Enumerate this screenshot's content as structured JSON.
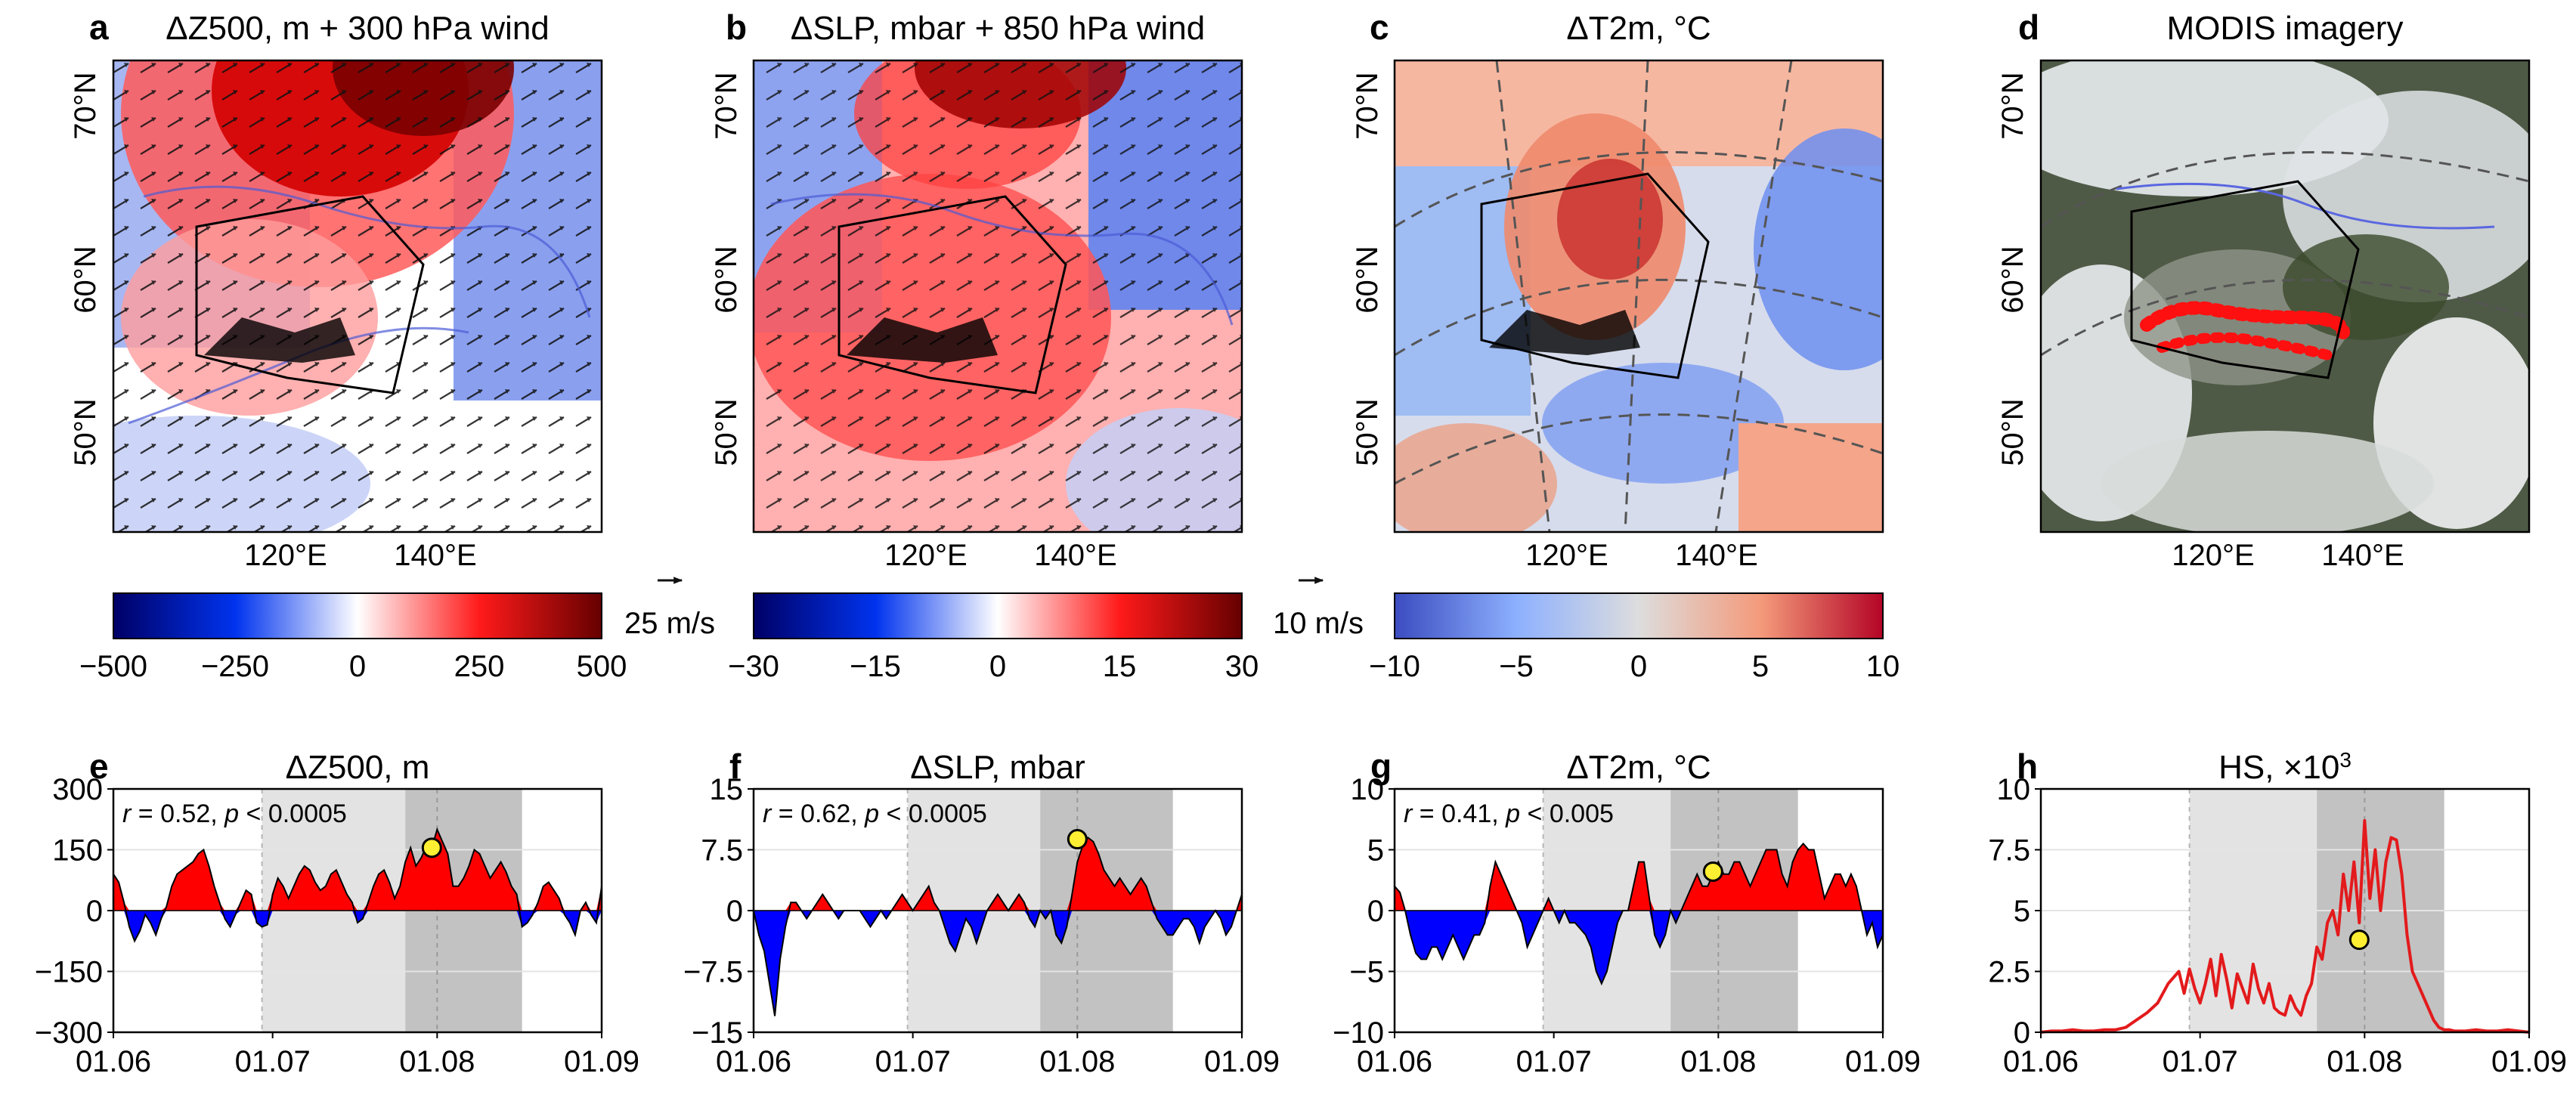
{
  "figure": {
    "map_panels": [
      {
        "letter": "a",
        "title": "ΔZ500, m + 300 hPa wind",
        "colorbar_type": "sym_dark",
        "cb_ticks": [
          "−500",
          "−250",
          "0",
          "250",
          "500"
        ],
        "wind_ref": "25 m/s"
      },
      {
        "letter": "b",
        "title": "ΔSLP, mbar + 850 hPa wind",
        "colorbar_type": "sym_dark",
        "cb_ticks": [
          "−30",
          "−15",
          "0",
          "15",
          "30"
        ],
        "wind_ref": "10 m/s"
      },
      {
        "letter": "c",
        "title": "ΔT2m, °C",
        "colorbar_type": "coolwarm",
        "cb_ticks": [
          "−10",
          "−5",
          "0",
          "5",
          "10"
        ],
        "wind_ref": ""
      },
      {
        "letter": "d",
        "title": "MODIS imagery",
        "colorbar_type": "none",
        "cb_ticks": [],
        "wind_ref": ""
      }
    ],
    "map_lat_labels": [
      "70°N",
      "60°N",
      "50°N"
    ],
    "map_lon_labels": [
      "120°E",
      "140°E"
    ],
    "colors": {
      "positive": "#ff0000",
      "negative": "#0000ff",
      "hs_line": "#e31a1c",
      "marker": "#ffef33",
      "shade_light": "#e3e3e3",
      "shade_dark": "#c2c2c2"
    }
  },
  "chart_data": [
    {
      "panel": "e",
      "title": "ΔZ500, m",
      "type": "area",
      "stat": {
        "r": "0.52",
        "p": "0.0005",
        "comp": "<"
      },
      "ylim": [
        -300,
        300
      ],
      "yticks": [
        -300,
        -150,
        0,
        150,
        300
      ],
      "ytick_labels": [
        "−300",
        "−150",
        "0",
        "150",
        "300"
      ],
      "xlim": [
        0,
        92
      ],
      "xticks": [
        0,
        30,
        61,
        92
      ],
      "xtick_labels": [
        "01.06",
        "01.07",
        "01.08",
        "01.09"
      ],
      "shade_light": [
        28,
        55
      ],
      "shade_dark": [
        55,
        77
      ],
      "vline": 61,
      "marker": {
        "x": 60,
        "y": 155
      },
      "x": [
        0,
        1,
        2,
        3,
        4,
        5,
        6,
        7,
        8,
        9,
        10,
        11,
        12,
        13,
        14,
        15,
        16,
        17,
        18,
        19,
        20,
        21,
        22,
        23,
        24,
        25,
        26,
        27,
        28,
        29,
        30,
        31,
        32,
        33,
        34,
        35,
        36,
        37,
        38,
        39,
        40,
        41,
        42,
        43,
        44,
        45,
        46,
        47,
        48,
        49,
        50,
        51,
        52,
        53,
        54,
        55,
        56,
        57,
        58,
        59,
        60,
        61,
        62,
        63,
        64,
        65,
        66,
        67,
        68,
        69,
        70,
        71,
        72,
        73,
        74,
        75,
        76,
        77,
        78,
        79,
        80,
        81,
        82,
        83,
        84,
        85,
        86,
        87,
        88,
        89,
        90,
        91,
        92
      ],
      "values": [
        90,
        70,
        20,
        -40,
        -75,
        -50,
        -10,
        -30,
        -60,
        -20,
        10,
        60,
        90,
        100,
        110,
        120,
        140,
        150,
        110,
        60,
        20,
        -20,
        -40,
        -10,
        20,
        50,
        40,
        -30,
        -40,
        -35,
        40,
        80,
        60,
        30,
        60,
        90,
        110,
        100,
        70,
        50,
        60,
        90,
        100,
        70,
        40,
        20,
        -30,
        -20,
        20,
        60,
        90,
        100,
        70,
        30,
        60,
        120,
        155,
        110,
        130,
        160,
        155,
        200,
        170,
        140,
        60,
        60,
        80,
        110,
        150,
        140,
        110,
        80,
        100,
        120,
        95,
        60,
        40,
        -40,
        -30,
        -10,
        20,
        60,
        70,
        50,
        30,
        -10,
        -30,
        -60,
        0,
        20,
        -10,
        -30,
        60
      ]
    },
    {
      "panel": "f",
      "title": "ΔSLP, mbar",
      "type": "area",
      "stat": {
        "r": "0.62",
        "p": "0.0005",
        "comp": "<"
      },
      "ylim": [
        -15,
        15
      ],
      "yticks": [
        -15,
        -7.5,
        0,
        7.5,
        15
      ],
      "ytick_labels": [
        "−15",
        "−7.5",
        "0",
        "7.5",
        "15"
      ],
      "xlim": [
        0,
        92
      ],
      "xticks": [
        0,
        30,
        61,
        92
      ],
      "xtick_labels": [
        "01.06",
        "01.07",
        "01.08",
        "01.09"
      ],
      "shade_light": [
        29,
        54
      ],
      "shade_dark": [
        54,
        79
      ],
      "vline": 61,
      "marker": {
        "x": 61,
        "y": 8.8
      },
      "x": [
        0,
        1,
        2,
        3,
        4,
        5,
        6,
        7,
        8,
        9,
        10,
        11,
        12,
        13,
        14,
        15,
        16,
        17,
        18,
        19,
        20,
        21,
        22,
        23,
        24,
        25,
        26,
        27,
        28,
        29,
        30,
        31,
        32,
        33,
        34,
        35,
        36,
        37,
        38,
        39,
        40,
        41,
        42,
        43,
        44,
        45,
        46,
        47,
        48,
        49,
        50,
        51,
        52,
        53,
        54,
        55,
        56,
        57,
        58,
        59,
        60,
        61,
        62,
        63,
        64,
        65,
        66,
        67,
        68,
        69,
        70,
        71,
        72,
        73,
        74,
        75,
        76,
        77,
        78,
        79,
        80,
        81,
        82,
        83,
        84,
        85,
        86,
        87,
        88,
        89,
        90,
        91,
        92
      ],
      "values": [
        0,
        -3,
        -5,
        -9,
        -13,
        -6,
        -2,
        1,
        1,
        0,
        -1,
        0,
        1,
        2,
        1,
        0,
        -1,
        0,
        0,
        0,
        0,
        -1,
        -2,
        -1,
        0,
        -1,
        0,
        1,
        2,
        1,
        0,
        1,
        2,
        3,
        1,
        0,
        -2,
        -4,
        -5,
        -3,
        -1,
        -2,
        -4,
        -2,
        0,
        1,
        2,
        1,
        0,
        1,
        2,
        1,
        -1,
        -2,
        0,
        -1,
        0,
        -3,
        -4,
        -2,
        2,
        6,
        8,
        9,
        8.5,
        7,
        5,
        4,
        3,
        4,
        3,
        2,
        3,
        4,
        3,
        1,
        -1,
        -2,
        -3,
        -3,
        -2,
        -1,
        -1,
        -2,
        -4,
        -2,
        -1,
        0,
        -1,
        -3,
        -2,
        0,
        2
      ]
    },
    {
      "panel": "g",
      "title": "ΔT2m, °C",
      "type": "area",
      "stat": {
        "r": "0.41",
        "p": "0.005",
        "comp": "<"
      },
      "ylim": [
        -10,
        10
      ],
      "yticks": [
        -10,
        -5,
        0,
        5,
        10
      ],
      "ytick_labels": [
        "−10",
        "−5",
        "0",
        "5",
        "10"
      ],
      "xlim": [
        0,
        92
      ],
      "xticks": [
        0,
        30,
        61,
        92
      ],
      "xtick_labels": [
        "01.06",
        "01.07",
        "01.08",
        "01.09"
      ],
      "shade_light": [
        28,
        52
      ],
      "shade_dark": [
        52,
        76
      ],
      "vline": 61,
      "marker": {
        "x": 60,
        "y": 3.2
      },
      "x": [
        0,
        1,
        2,
        3,
        4,
        5,
        6,
        7,
        8,
        9,
        10,
        11,
        12,
        13,
        14,
        15,
        16,
        17,
        18,
        19,
        20,
        21,
        22,
        23,
        24,
        25,
        26,
        27,
        28,
        29,
        30,
        31,
        32,
        33,
        34,
        35,
        36,
        37,
        38,
        39,
        40,
        41,
        42,
        43,
        44,
        45,
        46,
        47,
        48,
        49,
        50,
        51,
        52,
        53,
        54,
        55,
        56,
        57,
        58,
        59,
        60,
        61,
        62,
        63,
        64,
        65,
        66,
        67,
        68,
        69,
        70,
        71,
        72,
        73,
        74,
        75,
        76,
        77,
        78,
        79,
        80,
        81,
        82,
        83,
        84,
        85,
        86,
        87,
        88,
        89,
        90,
        91,
        92
      ],
      "values": [
        2,
        1.5,
        0,
        -2,
        -3.5,
        -4,
        -4,
        -3,
        -3,
        -4,
        -3,
        -2,
        -3,
        -4,
        -3,
        -2,
        -2,
        -1,
        2,
        4,
        3,
        2,
        1,
        0,
        -1,
        -3,
        -2,
        -1,
        0,
        1,
        0,
        -1,
        0,
        -1,
        -1,
        -1.5,
        -2,
        -3,
        -5,
        -6,
        -5,
        -3,
        -1,
        0,
        0,
        2,
        4,
        4,
        1,
        -2,
        -3,
        -2,
        0,
        -1,
        0,
        1,
        2,
        3,
        2,
        2,
        3,
        4,
        3,
        3,
        4,
        4,
        3,
        2,
        3,
        4,
        5,
        5,
        5,
        3,
        2,
        4,
        5,
        5.5,
        5,
        5,
        3,
        1,
        2,
        3,
        3,
        2,
        3,
        2,
        0,
        -2,
        -1,
        -3,
        -2
      ]
    },
    {
      "panel": "h",
      "title": "HS, ×10",
      "title_sup": "3",
      "type": "line",
      "stat": null,
      "ylim": [
        0,
        10
      ],
      "yticks": [
        0,
        2.5,
        5,
        7.5,
        10
      ],
      "ytick_labels": [
        "0",
        "2.5",
        "5",
        "7.5",
        "10"
      ],
      "xlim": [
        0,
        92
      ],
      "xticks": [
        0,
        30,
        61,
        92
      ],
      "xtick_labels": [
        "01.06",
        "01.07",
        "01.08",
        "01.09"
      ],
      "shade_light": [
        28,
        52
      ],
      "shade_dark": [
        52,
        76
      ],
      "vline": 61,
      "marker": {
        "x": 60,
        "y": 3.8
      },
      "x": [
        0,
        2,
        4,
        6,
        8,
        10,
        12,
        14,
        16,
        18,
        20,
        22,
        24,
        26,
        27,
        28,
        29,
        30,
        31,
        32,
        33,
        34,
        35,
        36,
        37,
        38,
        39,
        40,
        41,
        42,
        43,
        44,
        45,
        46,
        47,
        48,
        49,
        50,
        51,
        52,
        53,
        54,
        55,
        56,
        57,
        58,
        59,
        60,
        61,
        62,
        63,
        64,
        65,
        66,
        67,
        68,
        69,
        70,
        71,
        72,
        73,
        74,
        75,
        76,
        77,
        78,
        80,
        82,
        84,
        86,
        88,
        90,
        92
      ],
      "values": [
        0,
        0.05,
        0.05,
        0.1,
        0.05,
        0.05,
        0.1,
        0.1,
        0.2,
        0.5,
        0.8,
        1.2,
        2.0,
        2.5,
        1.6,
        2.6,
        1.8,
        1.2,
        2.0,
        3.0,
        1.5,
        3.2,
        2.2,
        1.0,
        2.4,
        1.8,
        1.2,
        2.8,
        1.8,
        1.2,
        2.0,
        1.0,
        0.8,
        0.7,
        1.5,
        1.0,
        0.7,
        1.5,
        2.0,
        3.5,
        3.0,
        4.5,
        5.0,
        4.0,
        6.5,
        5.0,
        7.0,
        4.5,
        8.7,
        5.5,
        7.5,
        5.0,
        7.0,
        8.0,
        7.9,
        6.5,
        4.0,
        2.5,
        2.0,
        1.5,
        1.0,
        0.5,
        0.2,
        0.1,
        0.1,
        0.05,
        0.05,
        0.1,
        0.05,
        0.05,
        0.1,
        0.05,
        0
      ]
    }
  ]
}
